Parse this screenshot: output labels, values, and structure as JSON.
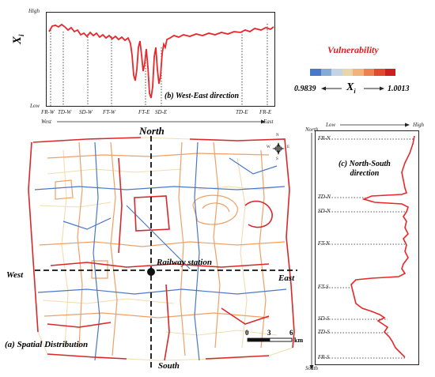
{
  "west_east_panel": {
    "caption": "(b) West-East direction",
    "y_high": "High",
    "y_low": "Low",
    "y_var": "X",
    "y_sub": "i",
    "x_left": "West",
    "x_right": "East",
    "markers": [
      "FR-W",
      "TD-W",
      "SD-W",
      "FT-W",
      "FT-E",
      "SD-E",
      "TD-E",
      "FR-E"
    ]
  },
  "legend": {
    "title": "Vulnerability",
    "min": "0.9839",
    "max": "1.0013",
    "var": "X",
    "sub": "i",
    "colors": [
      "#4a78c8",
      "#86aad6",
      "#c4d4e4",
      "#e8d6a8",
      "#f2b27a",
      "#ee8050",
      "#e04a2e",
      "#cc2020"
    ]
  },
  "north_south_panel": {
    "caption_line1": "(c) North-South",
    "caption_line2": "direction",
    "top_label": "North",
    "bottom_label": "South",
    "x_low": "Low",
    "x_high": "High",
    "markers": [
      "FR-N",
      "TD-N",
      "SD-N",
      "FT-N",
      "FT-S",
      "SD-S",
      "TD-S",
      "FR-S"
    ]
  },
  "map": {
    "caption": "(a) Spatial Distribution",
    "north": "North",
    "south": "South",
    "west": "West",
    "east": "East",
    "station": "Railway station",
    "scale_ticks": [
      "0",
      "3",
      "6"
    ],
    "scale_unit": "km",
    "compass_n": "N",
    "compass_s": "S",
    "compass_w": "W",
    "compass_e": "E"
  },
  "colors": {
    "profile": "#e8272a",
    "road_high": "#d8282a",
    "road_mid": "#f0a064",
    "road_low": "#4a78c8",
    "road_pale": "#f2ddb0"
  }
}
